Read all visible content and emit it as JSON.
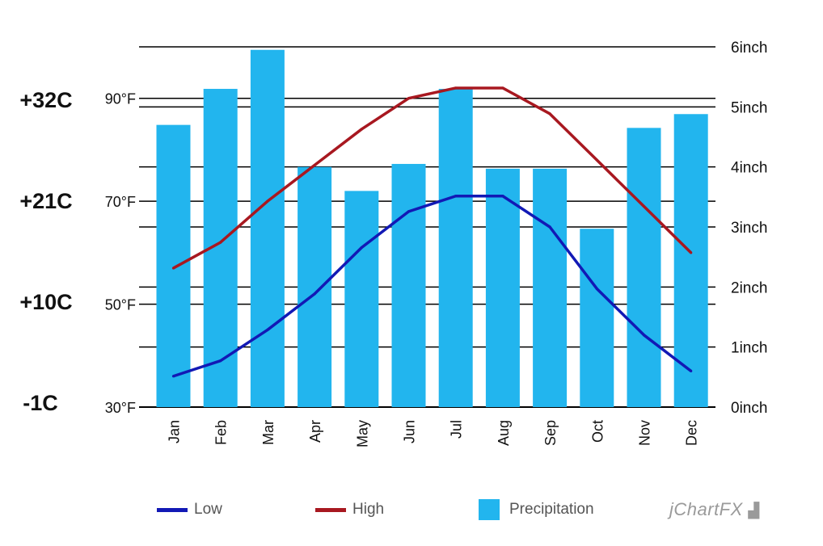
{
  "chart_data": {
    "type": "bar",
    "categories": [
      "Jan",
      "Feb",
      "Mar",
      "Apr",
      "May",
      "Jun",
      "Jul",
      "Aug",
      "Sep",
      "Oct",
      "Nov",
      "Dec"
    ],
    "series": [
      {
        "name": "Precipitation",
        "type": "bar",
        "axis": "right",
        "color": "#22B5EE",
        "values": [
          4.7,
          5.3,
          5.95,
          4.0,
          3.6,
          4.05,
          5.3,
          3.97,
          3.97,
          2.97,
          4.65,
          4.88
        ]
      },
      {
        "name": "Low",
        "type": "line",
        "axis": "left",
        "color": "#1219B5",
        "values": [
          36,
          39,
          45,
          52,
          61,
          68,
          71,
          71,
          65,
          53,
          44,
          37
        ]
      },
      {
        "name": "High",
        "type": "line",
        "axis": "left",
        "color": "#A81820",
        "values": [
          57,
          62,
          70,
          77,
          84,
          90,
          92,
          92,
          87,
          78,
          69,
          60
        ]
      }
    ],
    "y_left": {
      "min": 30,
      "max": 100,
      "ticks": [
        30,
        50,
        70,
        90
      ],
      "unit": "°F",
      "tick_labels": [
        "30°F",
        "50°F",
        "70°F",
        "90°F"
      ]
    },
    "y_right": {
      "min": 0,
      "max": 6,
      "ticks": [
        0,
        1,
        2,
        3,
        4,
        5,
        6
      ],
      "unit": "inch",
      "tick_labels": [
        "0inch",
        "1inch",
        "2inch",
        "3inch",
        "4inch",
        "5inch",
        "6inch"
      ]
    },
    "celsius_labels": [
      "+32C",
      "+21C",
      "+10C",
      "-1C"
    ],
    "legend": [
      {
        "label": "Low",
        "kind": "line",
        "color": "#1219B5"
      },
      {
        "label": "High",
        "kind": "line",
        "color": "#A81820"
      },
      {
        "label": "Precipitation",
        "kind": "box",
        "color": "#22B5EE"
      }
    ],
    "legend_position": "bottom",
    "grid": true
  },
  "brand": "jChartFX"
}
